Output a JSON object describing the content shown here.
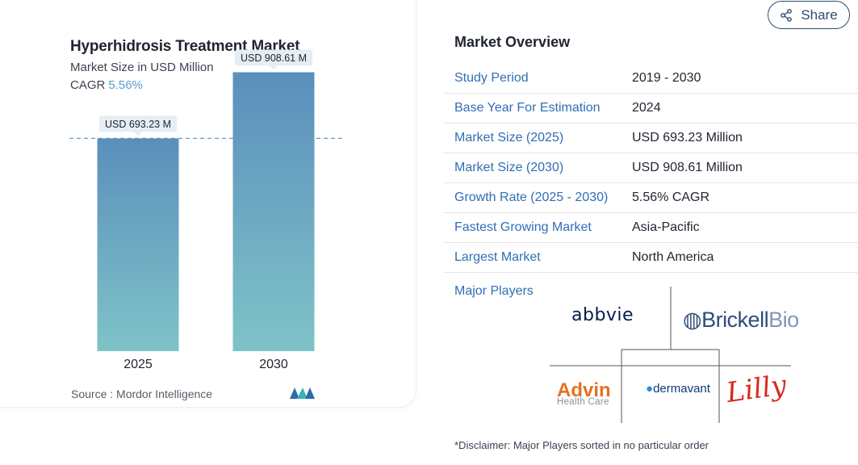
{
  "chart_data": {
    "type": "bar",
    "title": "Hyperhidrosis Treatment Market",
    "subtitle": "Market Size in USD Million",
    "cagr_label": "CAGR",
    "cagr_value": "5.56%",
    "categories": [
      "2025",
      "2030"
    ],
    "values": [
      693.23,
      908.61
    ],
    "data_labels": [
      "USD 693.23 M",
      "USD 908.61 M"
    ],
    "ylim": [
      0,
      1000
    ],
    "grid": false,
    "reference_line": "dashed line at 2025 value",
    "colors": {
      "bar_top": "#5b8fbc",
      "bar_bottom": "#7fc3c8",
      "dashed_line": "#5b9bd0"
    },
    "source": "Source :  Mordor Intelligence"
  },
  "share": {
    "label": "Share",
    "icon": "share-icon"
  },
  "overview": {
    "title": "Market Overview",
    "rows": [
      {
        "key": "Study Period",
        "value": "2019 - 2030"
      },
      {
        "key": "Base Year For Estimation",
        "value": "2024"
      },
      {
        "key": "Market Size (2025)",
        "value": "USD 693.23 Million"
      },
      {
        "key": "Market Size (2030)",
        "value": "USD 908.61 Million"
      },
      {
        "key": "Growth Rate (2025 - 2030)",
        "value": "5.56% CAGR"
      },
      {
        "key": "Fastest Growing Market",
        "value": "Asia-Pacific"
      },
      {
        "key": "Largest Market",
        "value": "North America"
      }
    ]
  },
  "major_players": {
    "label": "Major Players",
    "logos": {
      "abbvie": "abbvie",
      "brickell_main": "Brickell",
      "brickell_bio": "Bio",
      "advin_main": "Advin",
      "advin_sub": "Health Care",
      "dermavant": "dermavant",
      "lilly": "Lilly"
    }
  },
  "disclaimer": "*Disclaimer: Major Players sorted in no particular order"
}
